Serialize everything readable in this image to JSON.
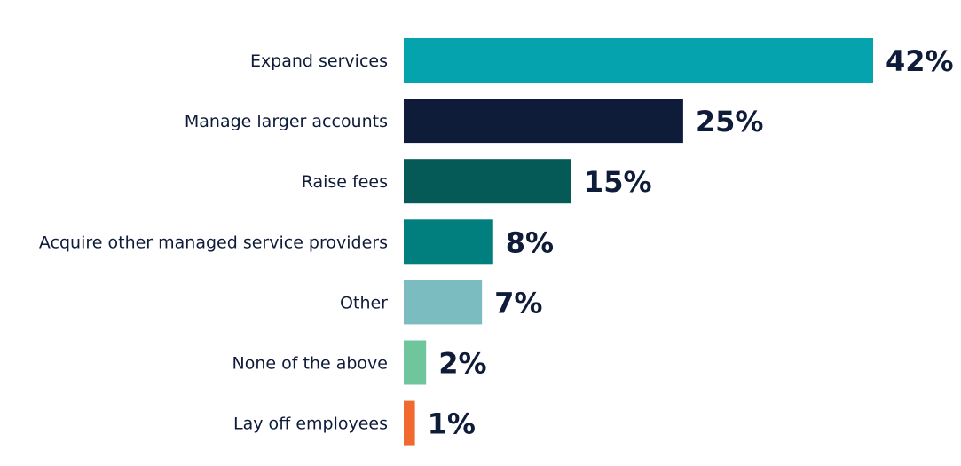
{
  "chart_data": {
    "type": "bar",
    "orientation": "horizontal",
    "title": "",
    "xlabel": "",
    "ylabel": "",
    "xlim": [
      0,
      42
    ],
    "grid": false,
    "categories": [
      "Expand services",
      "Manage larger accounts",
      "Raise fees",
      "Acquire other managed service providers",
      "Other",
      "None of the above",
      "Lay off employees"
    ],
    "values": [
      42,
      25,
      15,
      8,
      7,
      2,
      1
    ],
    "value_labels": [
      "42%",
      "25%",
      "15%",
      "8%",
      "7%",
      "2%",
      "1%"
    ],
    "colors": [
      "#05a3ad",
      "#0e1b39",
      "#055a57",
      "#017f7f",
      "#7bbcc1",
      "#6fc69d",
      "#f06a2f"
    ]
  }
}
